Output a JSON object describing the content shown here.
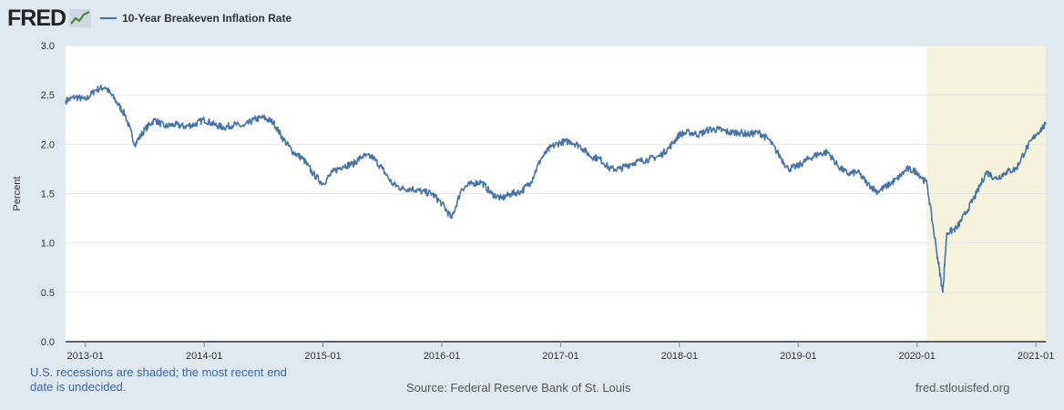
{
  "header": {
    "logo_text": "FRED",
    "logo_icon": "line-graph-icon",
    "series_name": "10-Year Breakeven Inflation Rate",
    "series_color": "#4572a7"
  },
  "chart_data": {
    "type": "line",
    "title": "10-Year Breakeven Inflation Rate",
    "xlabel": "",
    "ylabel": "Percent",
    "ylim": [
      0,
      3
    ],
    "yticks": [
      "0.0",
      "0.5",
      "1.0",
      "1.5",
      "2.0",
      "2.5",
      "3.0"
    ],
    "xticks": [
      "2013-01",
      "2014-01",
      "2015-01",
      "2016-01",
      "2017-01",
      "2018-01",
      "2019-01",
      "2020-01",
      "2021-01"
    ],
    "xlim": [
      "2012-11",
      "2021-02"
    ],
    "grid": "horizontal",
    "recession_shading": {
      "start": "2020-02",
      "end": "2021-02",
      "color": "#f5f3dc"
    },
    "series": [
      {
        "name": "10-Year Breakeven Inflation Rate",
        "color": "#4572a7",
        "points": [
          [
            "2012-11",
            2.44
          ],
          [
            "2012-12",
            2.48
          ],
          [
            "2013-01",
            2.45
          ],
          [
            "2013-02",
            2.55
          ],
          [
            "2013-03",
            2.58
          ],
          [
            "2013-04",
            2.45
          ],
          [
            "2013-05",
            2.3
          ],
          [
            "2013-06",
            2.0
          ],
          [
            "2013-07",
            2.15
          ],
          [
            "2013-08",
            2.25
          ],
          [
            "2013-09",
            2.18
          ],
          [
            "2013-10",
            2.2
          ],
          [
            "2013-11",
            2.18
          ],
          [
            "2013-12",
            2.2
          ],
          [
            "2014-01",
            2.25
          ],
          [
            "2014-02",
            2.2
          ],
          [
            "2014-03",
            2.17
          ],
          [
            "2014-04",
            2.2
          ],
          [
            "2014-05",
            2.18
          ],
          [
            "2014-06",
            2.25
          ],
          [
            "2014-07",
            2.27
          ],
          [
            "2014-08",
            2.22
          ],
          [
            "2014-09",
            2.05
          ],
          [
            "2014-10",
            1.92
          ],
          [
            "2014-11",
            1.85
          ],
          [
            "2014-12",
            1.7
          ],
          [
            "2015-01",
            1.6
          ],
          [
            "2015-02",
            1.72
          ],
          [
            "2015-03",
            1.78
          ],
          [
            "2015-04",
            1.8
          ],
          [
            "2015-05",
            1.88
          ],
          [
            "2015-06",
            1.87
          ],
          [
            "2015-07",
            1.75
          ],
          [
            "2015-08",
            1.6
          ],
          [
            "2015-09",
            1.55
          ],
          [
            "2015-10",
            1.55
          ],
          [
            "2015-11",
            1.52
          ],
          [
            "2015-12",
            1.5
          ],
          [
            "2016-01",
            1.4
          ],
          [
            "2016-02",
            1.25
          ],
          [
            "2016-03",
            1.55
          ],
          [
            "2016-04",
            1.6
          ],
          [
            "2016-05",
            1.62
          ],
          [
            "2016-06",
            1.5
          ],
          [
            "2016-07",
            1.45
          ],
          [
            "2016-08",
            1.5
          ],
          [
            "2016-09",
            1.52
          ],
          [
            "2016-10",
            1.62
          ],
          [
            "2016-11",
            1.85
          ],
          [
            "2016-12",
            1.97
          ],
          [
            "2017-01",
            2.02
          ],
          [
            "2017-02",
            2.03
          ],
          [
            "2017-03",
            1.98
          ],
          [
            "2017-04",
            1.88
          ],
          [
            "2017-05",
            1.85
          ],
          [
            "2017-06",
            1.75
          ],
          [
            "2017-07",
            1.75
          ],
          [
            "2017-08",
            1.8
          ],
          [
            "2017-09",
            1.83
          ],
          [
            "2017-10",
            1.85
          ],
          [
            "2017-11",
            1.88
          ],
          [
            "2017-12",
            1.97
          ],
          [
            "2018-01",
            2.1
          ],
          [
            "2018-02",
            2.12
          ],
          [
            "2018-03",
            2.1
          ],
          [
            "2018-04",
            2.15
          ],
          [
            "2018-05",
            2.15
          ],
          [
            "2018-06",
            2.12
          ],
          [
            "2018-07",
            2.12
          ],
          [
            "2018-08",
            2.1
          ],
          [
            "2018-09",
            2.12
          ],
          [
            "2018-10",
            2.05
          ],
          [
            "2018-11",
            1.9
          ],
          [
            "2018-12",
            1.75
          ],
          [
            "2019-01",
            1.78
          ],
          [
            "2019-02",
            1.85
          ],
          [
            "2019-03",
            1.9
          ],
          [
            "2019-04",
            1.92
          ],
          [
            "2019-05",
            1.78
          ],
          [
            "2019-06",
            1.7
          ],
          [
            "2019-07",
            1.72
          ],
          [
            "2019-08",
            1.6
          ],
          [
            "2019-09",
            1.52
          ],
          [
            "2019-10",
            1.58
          ],
          [
            "2019-11",
            1.65
          ],
          [
            "2019-12",
            1.75
          ],
          [
            "2020-01",
            1.72
          ],
          [
            "2020-02",
            1.6
          ],
          [
            "2020-03",
            0.9
          ],
          [
            "2020-03-19",
            0.5
          ],
          [
            "2020-04",
            1.1
          ],
          [
            "2020-05",
            1.15
          ],
          [
            "2020-06",
            1.32
          ],
          [
            "2020-07",
            1.5
          ],
          [
            "2020-08",
            1.72
          ],
          [
            "2020-09",
            1.65
          ],
          [
            "2020-10",
            1.72
          ],
          [
            "2020-11",
            1.75
          ],
          [
            "2020-12",
            1.95
          ],
          [
            "2021-01",
            2.1
          ],
          [
            "2021-02",
            2.2
          ]
        ]
      }
    ]
  },
  "footer": {
    "recession_note": "U.S. recessions are shaded; the most recent end date is undecided.",
    "source": "Source: Federal Reserve Bank of St. Louis",
    "site": "fred.stlouisfed.org"
  }
}
